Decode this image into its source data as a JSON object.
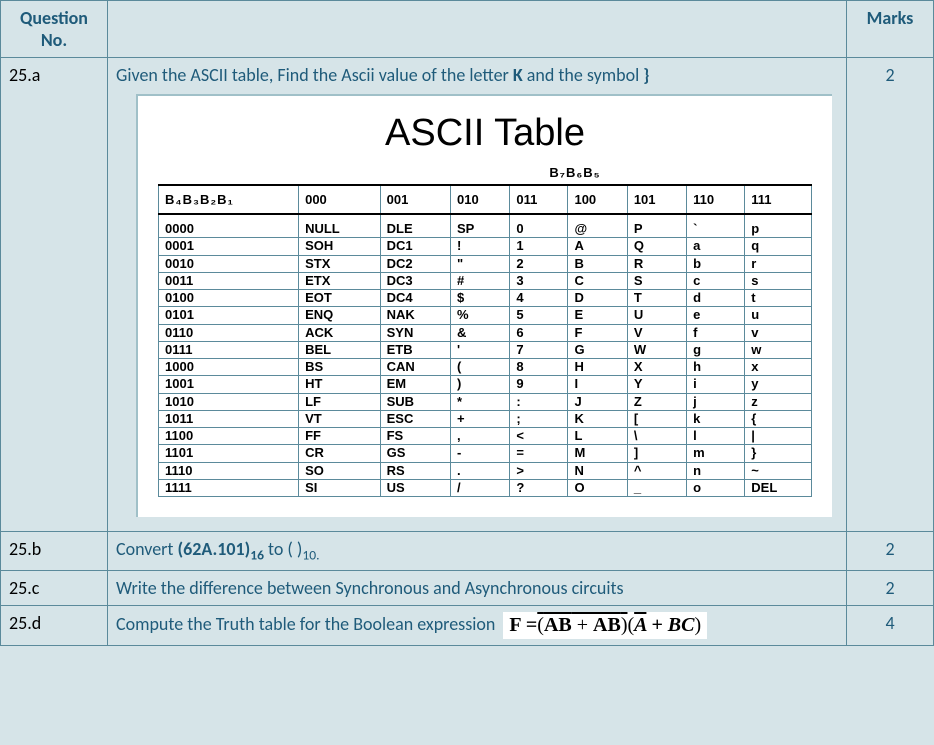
{
  "header": {
    "question_no": "Question No.",
    "marks": "Marks"
  },
  "rows": [
    {
      "no": "25.a",
      "text_pre": "Given the ASCII table, Find the Ascii value of the letter ",
      "bold1": "K",
      "text_mid": " and the symbol ",
      "bold2": "}",
      "marks": "2"
    },
    {
      "no": "25.b",
      "text_pre": "Convert ",
      "bold1": "(62A.101)",
      "sub1": "16",
      "text_mid": "  to  (      )",
      "sub2": "10.",
      "marks": "2"
    },
    {
      "no": "25.c",
      "text": "Write the difference between Synchronous and Asynchronous circuits",
      "marks": "2"
    },
    {
      "no": "25.d",
      "text": "Compute the Truth table for the Boolean expression ",
      "marks": "4"
    }
  ],
  "ascii": {
    "title": "ASCII Table",
    "top_bits_label": "B₇B₆B₅",
    "left_bits_label": "B₄B₃B₂B₁",
    "col_headers": [
      "000",
      "001",
      "010",
      "011",
      "100",
      "101",
      "110",
      "111"
    ],
    "rows": [
      [
        "0000",
        "NULL",
        "DLE",
        "SP",
        "0",
        "@",
        "P",
        "`",
        "p"
      ],
      [
        "0001",
        "SOH",
        "DC1",
        "!",
        "1",
        "A",
        "Q",
        "a",
        "q"
      ],
      [
        "0010",
        "STX",
        "DC2",
        "\"",
        "2",
        "B",
        "R",
        "b",
        "r"
      ],
      [
        "0011",
        "ETX",
        "DC3",
        "#",
        "3",
        "C",
        "S",
        "c",
        "s"
      ],
      [
        "0100",
        "EOT",
        "DC4",
        "$",
        "4",
        "D",
        "T",
        "d",
        "t"
      ],
      [
        "0101",
        "ENQ",
        "NAK",
        "%",
        "5",
        "E",
        "U",
        "e",
        "u"
      ],
      [
        "0110",
        "ACK",
        "SYN",
        "&",
        "6",
        "F",
        "V",
        "f",
        "v"
      ],
      [
        "0111",
        "BEL",
        "ETB",
        "'",
        "7",
        "G",
        "W",
        "g",
        "w"
      ],
      [
        "1000",
        "BS",
        "CAN",
        "(",
        "8",
        "H",
        "X",
        "h",
        "x"
      ],
      [
        "1001",
        "HT",
        "EM",
        ")",
        "9",
        "I",
        "Y",
        "i",
        "y"
      ],
      [
        "1010",
        "LF",
        "SUB",
        "*",
        ":",
        "J",
        "Z",
        "j",
        "z"
      ],
      [
        "1011",
        "VT",
        "ESC",
        "+",
        ";",
        "K",
        "[",
        "k",
        "{"
      ],
      [
        "1100",
        "FF",
        "FS",
        ",",
        "<",
        "L",
        "\\",
        "l",
        "|"
      ],
      [
        "1101",
        "CR",
        "GS",
        "-",
        "=",
        "M",
        "]",
        "m",
        "}"
      ],
      [
        "1110",
        "SO",
        "RS",
        ".",
        ">",
        "N",
        "^",
        "n",
        "~"
      ],
      [
        "1111",
        "SI",
        "US",
        "/",
        "?",
        "O",
        "_",
        "o",
        "DEL"
      ]
    ]
  },
  "formula": {
    "prefix": "F =",
    "group1_over_ab": "AB",
    "plus": " + ",
    "abar": "A",
    "b_after": "B",
    "group2_abar": "A",
    "group2_plus": " + BC"
  }
}
